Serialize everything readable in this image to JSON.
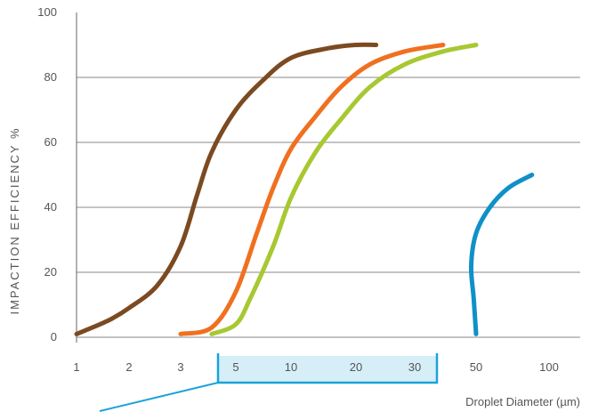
{
  "chart_data": {
    "type": "line",
    "title": "",
    "xlabel": "Droplet Diameter (µm)",
    "ylabel": "IMPACTION EFFICIENCY %",
    "ylim": [
      0,
      100
    ],
    "yticks": [
      0,
      20,
      40,
      60,
      80,
      100
    ],
    "xticks": [
      "1",
      "2",
      "3",
      "5",
      "10",
      "20",
      "30",
      "50",
      "100"
    ],
    "grid": true,
    "highlight_ticks": [
      "5",
      "10",
      "20",
      "30"
    ],
    "series": [
      {
        "color": "#7b4a21",
        "points": [
          [
            1,
            1
          ],
          [
            1.5,
            5
          ],
          [
            2,
            9
          ],
          [
            2.5,
            16
          ],
          [
            3,
            28
          ],
          [
            3.5,
            44
          ],
          [
            4,
            57
          ],
          [
            5,
            70
          ],
          [
            7,
            79
          ],
          [
            10,
            86
          ],
          [
            15,
            89
          ],
          [
            20,
            90
          ],
          [
            23,
            90
          ]
        ]
      },
      {
        "color": "#f07020",
        "points": [
          [
            3,
            1
          ],
          [
            4,
            3
          ],
          [
            5,
            14
          ],
          [
            6.5,
            32
          ],
          [
            8,
            46
          ],
          [
            10,
            58
          ],
          [
            13,
            68
          ],
          [
            17,
            77
          ],
          [
            22,
            84
          ],
          [
            28,
            88
          ],
          [
            38,
            90
          ]
        ]
      },
      {
        "color": "#a8c832",
        "points": [
          [
            4,
            1
          ],
          [
            5,
            4
          ],
          [
            6,
            12
          ],
          [
            8,
            28
          ],
          [
            10,
            43
          ],
          [
            13,
            57
          ],
          [
            17,
            67
          ],
          [
            22,
            77
          ],
          [
            28,
            84
          ],
          [
            38,
            88
          ],
          [
            50,
            90
          ]
        ]
      },
      {
        "color": "#1090c8",
        "points": [
          [
            50,
            1
          ],
          [
            49,
            12
          ],
          [
            48,
            22
          ],
          [
            50,
            32
          ],
          [
            57,
            40
          ],
          [
            68,
            46
          ],
          [
            85,
            50
          ]
        ]
      }
    ]
  }
}
